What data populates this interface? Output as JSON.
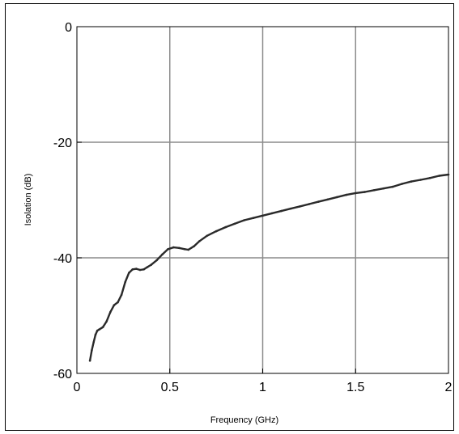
{
  "chart_data": {
    "type": "line",
    "title": "",
    "xlabel": "Frequency (GHz)",
    "ylabel": "Isolation (dB)",
    "xlim": [
      0,
      2
    ],
    "ylim": [
      -60,
      0
    ],
    "xticks": [
      0,
      0.5,
      1,
      1.5,
      2
    ],
    "yticks": [
      0,
      -20,
      -40,
      -60
    ],
    "xtick_labels": [
      "0",
      "0.5",
      "1",
      "1.5",
      "2"
    ],
    "ytick_labels": [
      "0",
      "-20",
      "-40",
      "-60"
    ],
    "grid": true,
    "legend": "none",
    "series": [
      {
        "color": "#2a2a2a",
        "x": [
          0.07,
          0.08,
          0.09,
          0.1,
          0.11,
          0.12,
          0.14,
          0.16,
          0.18,
          0.2,
          0.22,
          0.24,
          0.26,
          0.28,
          0.3,
          0.32,
          0.34,
          0.36,
          0.38,
          0.4,
          0.43,
          0.46,
          0.49,
          0.52,
          0.55,
          0.58,
          0.6,
          0.63,
          0.66,
          0.7,
          0.75,
          0.8,
          0.85,
          0.9,
          0.95,
          1.0,
          1.05,
          1.1,
          1.15,
          1.2,
          1.25,
          1.3,
          1.35,
          1.4,
          1.45,
          1.5,
          1.55,
          1.6,
          1.65,
          1.7,
          1.75,
          1.8,
          1.85,
          1.9,
          1.95,
          2.0
        ],
        "y": [
          -57.8,
          -56.0,
          -54.6,
          -53.3,
          -52.6,
          -52.4,
          -52.0,
          -51.0,
          -49.4,
          -48.2,
          -47.7,
          -46.4,
          -44.2,
          -42.6,
          -42.0,
          -41.9,
          -42.1,
          -42.0,
          -41.6,
          -41.2,
          -40.4,
          -39.4,
          -38.5,
          -38.2,
          -38.3,
          -38.5,
          -38.6,
          -38.0,
          -37.1,
          -36.2,
          -35.4,
          -34.7,
          -34.1,
          -33.5,
          -33.1,
          -32.7,
          -32.3,
          -31.9,
          -31.5,
          -31.1,
          -30.7,
          -30.3,
          -29.9,
          -29.5,
          -29.1,
          -28.8,
          -28.6,
          -28.3,
          -28.0,
          -27.7,
          -27.2,
          -26.8,
          -26.5,
          -26.2,
          -25.8,
          -25.6
        ]
      }
    ]
  }
}
